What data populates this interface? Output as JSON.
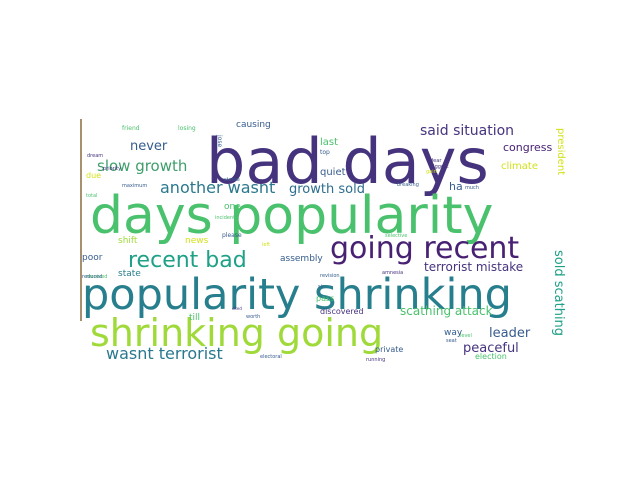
{
  "wordcloud": {
    "accent_colors": {
      "dark_purple": "#46337e",
      "purple": "#482173",
      "blue": "#365c8d",
      "teal": "#277f8e",
      "green_teal": "#1fa187",
      "green": "#4ac16d",
      "lime": "#9fda3a",
      "yellow": "#d2e21b"
    },
    "words": [
      {
        "text": "bad days",
        "color": "#46337e"
      },
      {
        "text": "days popularity",
        "color": "#4ac16d"
      },
      {
        "text": "popularity shrinking",
        "color": "#277f8e"
      },
      {
        "text": "shrinking going",
        "color": "#9fda3a"
      },
      {
        "text": "going recent",
        "color": "#482173"
      },
      {
        "text": "recent bad",
        "color": "#1fa187"
      },
      {
        "text": "wasnt terrorist",
        "color": "#2a788e"
      },
      {
        "text": "another wasnt",
        "color": "#2a788e"
      },
      {
        "text": "slow growth",
        "color": "#3e9e6a"
      },
      {
        "text": "said situation",
        "color": "#46337e"
      },
      {
        "text": "never",
        "color": "#365c8d"
      },
      {
        "text": "growth sold",
        "color": "#2c6e8e"
      },
      {
        "text": "terrorist mistake",
        "color": "#46337e"
      },
      {
        "text": "scathing attack",
        "color": "#4ac16d"
      },
      {
        "text": "sold scathing",
        "color": "#1fa187"
      },
      {
        "text": "leader",
        "color": "#365c8d"
      },
      {
        "text": "peaceful",
        "color": "#46337e"
      },
      {
        "text": "congress",
        "color": "#482173"
      },
      {
        "text": "climate",
        "color": "#d2e21b"
      },
      {
        "text": "president",
        "color": "#d2e21b"
      },
      {
        "text": "ha",
        "color": "#365c8d"
      },
      {
        "text": "last",
        "color": "#4ac16d"
      },
      {
        "text": "quiet",
        "color": "#365c8d"
      },
      {
        "text": "causing",
        "color": "#365c8d"
      },
      {
        "text": "assembly",
        "color": "#365c8d"
      },
      {
        "text": "state",
        "color": "#277f8e"
      },
      {
        "text": "poor",
        "color": "#365c8d"
      },
      {
        "text": "shift",
        "color": "#9fda3a"
      },
      {
        "text": "news",
        "color": "#d2e21b"
      },
      {
        "text": "till",
        "color": "#4ac16d"
      },
      {
        "text": "pass",
        "color": "#4ac16d"
      },
      {
        "text": "discovered",
        "color": "#46337e"
      },
      {
        "text": "way",
        "color": "#365c8d"
      },
      {
        "text": "private",
        "color": "#365c8d"
      },
      {
        "text": "election",
        "color": "#4ac16d"
      },
      {
        "text": "one",
        "color": "#4ac16d"
      },
      {
        "text": "due",
        "color": "#d2e21b"
      },
      {
        "text": "friend",
        "color": "#4ac16d"
      },
      {
        "text": "losing",
        "color": "#4ac16d"
      },
      {
        "text": "jose",
        "color": "#365c8d"
      },
      {
        "text": "top",
        "color": "#365c8d"
      },
      {
        "text": "dream",
        "color": "#46337e"
      },
      {
        "text": "priority",
        "color": "#46337e"
      },
      {
        "text": "maximum",
        "color": "#365c8d"
      },
      {
        "text": "total",
        "color": "#4ac16d"
      },
      {
        "text": "received",
        "color": "#4ac16d"
      },
      {
        "text": "statue",
        "color": "#365c8d"
      },
      {
        "text": "incident",
        "color": "#4ac16d"
      },
      {
        "text": "please",
        "color": "#365c8d"
      },
      {
        "text": "left",
        "color": "#d2e21b"
      },
      {
        "text": "breaking",
        "color": "#365c8d"
      },
      {
        "text": "much",
        "color": "#365c8d"
      },
      {
        "text": "biggest",
        "color": "#46337e"
      },
      {
        "text": "selective",
        "color": "#4ac16d"
      },
      {
        "text": "reduced",
        "color": "#365c8d"
      },
      {
        "text": "revision",
        "color": "#365c8d"
      },
      {
        "text": "amnesia",
        "color": "#46337e"
      },
      {
        "text": "sir",
        "color": "#365c8d"
      },
      {
        "text": "level",
        "color": "#4ac16d"
      },
      {
        "text": "electoral",
        "color": "#365c8d"
      },
      {
        "text": "running",
        "color": "#46337e"
      },
      {
        "text": "worth",
        "color": "#365c8d"
      },
      {
        "text": "dear",
        "color": "#46337e"
      },
      {
        "text": "gain",
        "color": "#d2e21b"
      },
      {
        "text": "seat",
        "color": "#365c8d"
      },
      {
        "text": "cited",
        "color": "#46337e"
      }
    ]
  }
}
